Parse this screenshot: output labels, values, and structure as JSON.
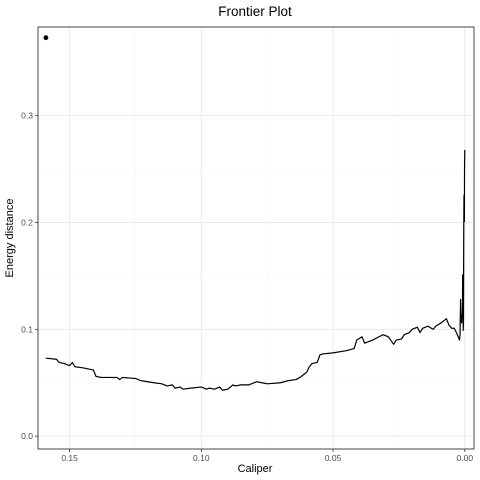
{
  "chart_data": {
    "type": "line",
    "title": "Frontier Plot",
    "xlabel": "Caliper",
    "ylabel": "Energy distance",
    "x_reversed": true,
    "xlim": [
      0.162,
      -0.0035
    ],
    "ylim": [
      -0.012,
      0.383
    ],
    "x_ticks": [
      0.15,
      0.1,
      0.05,
      0.0
    ],
    "x_tick_labels": [
      "0.15",
      "0.10",
      "0.05",
      "0.00"
    ],
    "y_ticks": [
      0.0,
      0.1,
      0.2,
      0.3
    ],
    "y_tick_labels": [
      "0.0",
      "0.1",
      "0.2",
      "0.3"
    ],
    "grid": true,
    "legend": "none",
    "colors": {
      "line": "#000000",
      "grid_major": "#ebebeb",
      "grid_minor": "#f5f5f5",
      "panel_border": "#333333"
    },
    "point": {
      "x": 0.159,
      "y": 0.373
    },
    "series": [
      {
        "points": [
          [
            0.159,
            0.073
          ],
          [
            0.155,
            0.072
          ],
          [
            0.154,
            0.069
          ],
          [
            0.152,
            0.068
          ],
          [
            0.15,
            0.066
          ],
          [
            0.149,
            0.069
          ],
          [
            0.148,
            0.065
          ],
          [
            0.145,
            0.064
          ],
          [
            0.141,
            0.062
          ],
          [
            0.14,
            0.056
          ],
          [
            0.138,
            0.055
          ],
          [
            0.135,
            0.055
          ],
          [
            0.132,
            0.055
          ],
          [
            0.131,
            0.053
          ],
          [
            0.13,
            0.055
          ],
          [
            0.125,
            0.054
          ],
          [
            0.123,
            0.052
          ],
          [
            0.118,
            0.05
          ],
          [
            0.115,
            0.049
          ],
          [
            0.113,
            0.047
          ],
          [
            0.111,
            0.048
          ],
          [
            0.11,
            0.045
          ],
          [
            0.108,
            0.046
          ],
          [
            0.107,
            0.044
          ],
          [
            0.104,
            0.045
          ],
          [
            0.1,
            0.046
          ],
          [
            0.098,
            0.044
          ],
          [
            0.097,
            0.045
          ],
          [
            0.095,
            0.044
          ],
          [
            0.093,
            0.046
          ],
          [
            0.092,
            0.043
          ],
          [
            0.09,
            0.044
          ],
          [
            0.089,
            0.046
          ],
          [
            0.088,
            0.048
          ],
          [
            0.087,
            0.047
          ],
          [
            0.085,
            0.048
          ],
          [
            0.082,
            0.048
          ],
          [
            0.079,
            0.051
          ],
          [
            0.077,
            0.05
          ],
          [
            0.075,
            0.049
          ],
          [
            0.07,
            0.05
          ],
          [
            0.067,
            0.052
          ],
          [
            0.064,
            0.053
          ],
          [
            0.062,
            0.056
          ],
          [
            0.06,
            0.06
          ],
          [
            0.059,
            0.065
          ],
          [
            0.058,
            0.068
          ],
          [
            0.056,
            0.069
          ],
          [
            0.055,
            0.076
          ],
          [
            0.054,
            0.077
          ],
          [
            0.05,
            0.078
          ],
          [
            0.045,
            0.08
          ],
          [
            0.042,
            0.082
          ],
          [
            0.041,
            0.09
          ],
          [
            0.039,
            0.093
          ],
          [
            0.038,
            0.087
          ],
          [
            0.035,
            0.09
          ],
          [
            0.031,
            0.095
          ],
          [
            0.029,
            0.093
          ],
          [
            0.027,
            0.086
          ],
          [
            0.026,
            0.09
          ],
          [
            0.024,
            0.091
          ],
          [
            0.023,
            0.095
          ],
          [
            0.021,
            0.097
          ],
          [
            0.02,
            0.1
          ],
          [
            0.018,
            0.102
          ],
          [
            0.017,
            0.097
          ],
          [
            0.016,
            0.101
          ],
          [
            0.014,
            0.103
          ],
          [
            0.012,
            0.1
          ],
          [
            0.011,
            0.103
          ],
          [
            0.009,
            0.106
          ],
          [
            0.007,
            0.11
          ],
          [
            0.006,
            0.104
          ],
          [
            0.005,
            0.101
          ],
          [
            0.004,
            0.101
          ],
          [
            0.003,
            0.096
          ],
          [
            0.002,
            0.09
          ],
          [
            0.0018,
            0.095
          ],
          [
            0.0016,
            0.128
          ],
          [
            0.0014,
            0.108
          ],
          [
            0.0012,
            0.106
          ],
          [
            0.001,
            0.113
          ],
          [
            0.0009,
            0.115
          ],
          [
            0.0008,
            0.151
          ],
          [
            0.0007,
            0.145
          ],
          [
            0.0006,
            0.099
          ],
          [
            0.0005,
            0.107
          ],
          [
            0.0004,
            0.192
          ],
          [
            0.0003,
            0.225
          ],
          [
            0.00025,
            0.205
          ],
          [
            0.0002,
            0.226
          ],
          [
            0.00015,
            0.201
          ],
          [
            0.0001,
            0.25
          ],
          [
            5e-05,
            0.259
          ],
          [
            0.0,
            0.268
          ]
        ]
      }
    ]
  }
}
